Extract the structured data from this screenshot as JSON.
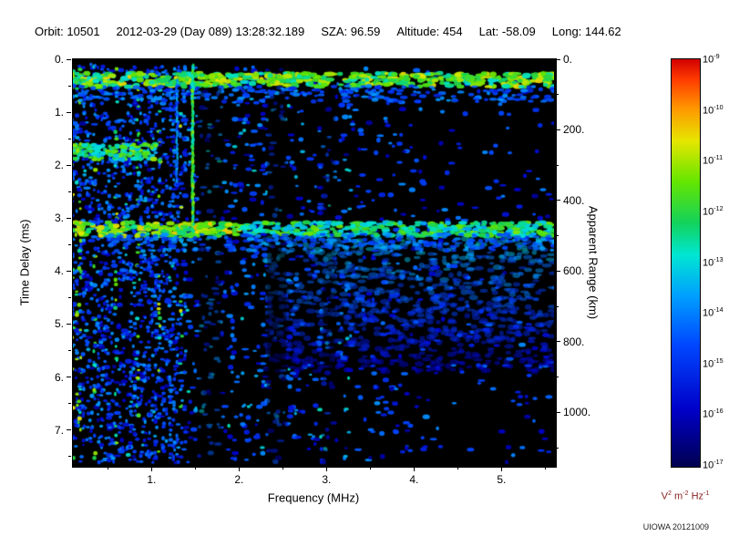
{
  "header": {
    "fields": [
      {
        "label": "Orbit:",
        "value": "10501"
      },
      {
        "label": "",
        "value": "2012-03-29 (Day 089) 13:28:32.189"
      },
      {
        "label": "SZA:",
        "value": "96.59"
      },
      {
        "label": "Altitude:",
        "value": "454"
      },
      {
        "label": "Lat:",
        "value": "-58.09"
      },
      {
        "label": "Long:",
        "value": "144.62"
      }
    ]
  },
  "footer": {
    "credit": "UIOWA 20121009"
  },
  "chart_data": {
    "type": "heatmap",
    "xlabel": "Frequency (MHz)",
    "ylabel_left": "Time Delay (ms)",
    "ylabel_right": "Apparent Range (km)",
    "x_range": [
      0.1,
      5.6
    ],
    "y_range": [
      0,
      7.66
    ],
    "y2_range": [
      0,
      1149
    ],
    "x_ticks": [
      1,
      2,
      3,
      4,
      5
    ],
    "x_tick_labels": [
      "1.",
      "2.",
      "3.",
      "4.",
      "5."
    ],
    "y_ticks": [
      0,
      1,
      2,
      3,
      4,
      5,
      6,
      7
    ],
    "y_tick_labels": [
      "0.",
      "1.",
      "2.",
      "3.",
      "4.",
      "5.",
      "6.",
      "7."
    ],
    "y2_ticks": [
      0,
      200,
      400,
      600,
      800,
      1000
    ],
    "y2_tick_labels": [
      "0.",
      "200.",
      "400.",
      "600.",
      "800.",
      "1000."
    ],
    "colorbar": {
      "base": "10",
      "tick_exponents": [
        "-9",
        "-10",
        "-11",
        "-12",
        "-13",
        "-14",
        "-15",
        "-16",
        "-17"
      ],
      "unit_tokens": [
        {
          "t": "V",
          "s": "2"
        },
        {
          "t": "m",
          "s": "-2"
        },
        {
          "t": "Hz",
          "s": "-1"
        }
      ],
      "unit_color": "#8b2323"
    },
    "colormap_stops": [
      {
        "t": 0.0,
        "c": "#000050"
      },
      {
        "t": 0.14,
        "c": "#0000c8"
      },
      {
        "t": 0.3,
        "c": "#0048ff"
      },
      {
        "t": 0.42,
        "c": "#00a0ff"
      },
      {
        "t": 0.52,
        "c": "#00e6d2"
      },
      {
        "t": 0.6,
        "c": "#14d25a"
      },
      {
        "t": 0.7,
        "c": "#64e600"
      },
      {
        "t": 0.8,
        "c": "#e6e600"
      },
      {
        "t": 0.88,
        "c": "#ff9600"
      },
      {
        "t": 0.95,
        "c": "#ff3c00"
      },
      {
        "t": 1.0,
        "c": "#d20000"
      }
    ],
    "seed": 20121009,
    "features": [
      {
        "kind": "noise",
        "count": 1500,
        "f": [
          0.1,
          5.6
        ],
        "t": [
          0.15,
          7.62
        ],
        "intensity": [
          0.08,
          0.4
        ],
        "rx": [
          1.8,
          4.2
        ],
        "ry": [
          1.3,
          2.8
        ],
        "alpha": 0.95,
        "right_falloff": {
          "start": 2.9,
          "min": 0.32
        }
      },
      {
        "kind": "noise",
        "count": 280,
        "f": [
          0.12,
          3.3
        ],
        "t": [
          0.3,
          7.55
        ],
        "intensity": [
          0.33,
          0.54
        ],
        "rx": [
          1.5,
          3.0
        ],
        "ry": [
          1.2,
          2.2
        ],
        "alpha": 0.9
      },
      {
        "kind": "fan",
        "count": 950,
        "f": [
          2.3,
          5.6
        ],
        "t": [
          3.35,
          5.9
        ],
        "intensity": [
          0.14,
          0.55
        ],
        "rx": [
          2.5,
          5.5
        ],
        "ry": [
          1.5,
          3.2
        ],
        "alpha": 0.5
      },
      {
        "kind": "gaps",
        "ranges": [
          {
            "f": [
              1.54,
              1.8
            ],
            "alpha": 0.45
          },
          {
            "f": [
              2.32,
              2.54
            ],
            "alpha": 0.45
          },
          {
            "f": [
              2.95,
              3.1
            ],
            "alpha": 0.3
          }
        ]
      },
      {
        "kind": "stripes",
        "f": [
          0.1,
          1.38
        ],
        "cols": 32,
        "blobs": [
          24,
          58
        ],
        "t": [
          0.1,
          7.62
        ],
        "intensity": [
          0.14,
          0.42
        ],
        "bright_intensity": [
          0.5,
          0.8
        ],
        "bright_first": 3,
        "bright_every": 6,
        "rx": [
          1.4,
          2.7
        ],
        "ry": [
          1.3,
          2.5
        ]
      },
      {
        "kind": "hband",
        "count": 150,
        "f": [
          0.1,
          1.05
        ],
        "t": [
          1.6,
          1.9
        ],
        "intensity": [
          0.45,
          0.75
        ],
        "rx": [
          2.0,
          4.0
        ],
        "ry": [
          1.5,
          2.6
        ],
        "alpha": 0.95
      },
      {
        "kind": "hband",
        "count": 520,
        "f": [
          0.1,
          5.6
        ],
        "t": [
          0.26,
          0.52
        ],
        "intensity": [
          0.5,
          0.82
        ],
        "rx": [
          2.5,
          5.5
        ],
        "ry": [
          1.6,
          3.0
        ],
        "alpha": 0.95
      },
      {
        "kind": "hband",
        "count": 220,
        "f": [
          0.1,
          5.6
        ],
        "t": [
          0.5,
          0.8
        ],
        "intensity": [
          0.22,
          0.42
        ],
        "rx": [
          2.0,
          4.5
        ],
        "ry": [
          1.4,
          2.4
        ],
        "alpha": 0.9
      },
      {
        "kind": "hband",
        "count": 520,
        "f": [
          0.1,
          5.6
        ],
        "t": [
          3.08,
          3.34
        ],
        "intensity": [
          0.42,
          0.72
        ],
        "rx": [
          2.5,
          5.5
        ],
        "ry": [
          1.6,
          2.8
        ],
        "alpha": 0.95,
        "left_boost": [
          2.0,
          0.12
        ]
      },
      {
        "kind": "hband",
        "count": 260,
        "f": [
          0.5,
          5.6
        ],
        "t": [
          3.3,
          3.62
        ],
        "intensity": [
          0.24,
          0.44
        ],
        "rx": [
          2.0,
          4.5
        ],
        "ry": [
          1.4,
          2.4
        ],
        "alpha": 0.85
      },
      {
        "kind": "vline",
        "f": 1.47,
        "t": [
          0.12,
          3.25
        ],
        "count": 95,
        "intensity": [
          0.48,
          0.75
        ],
        "rx": [
          1.1,
          2.0
        ],
        "ry": [
          1.8,
          3.4
        ],
        "alpha": 0.95
      },
      {
        "kind": "vline",
        "f": 1.29,
        "t": [
          0.4,
          2.3
        ],
        "count": 45,
        "intensity": [
          0.28,
          0.48
        ],
        "rx": [
          1.0,
          1.6
        ],
        "ry": [
          1.5,
          2.8
        ],
        "alpha": 0.9
      }
    ]
  }
}
